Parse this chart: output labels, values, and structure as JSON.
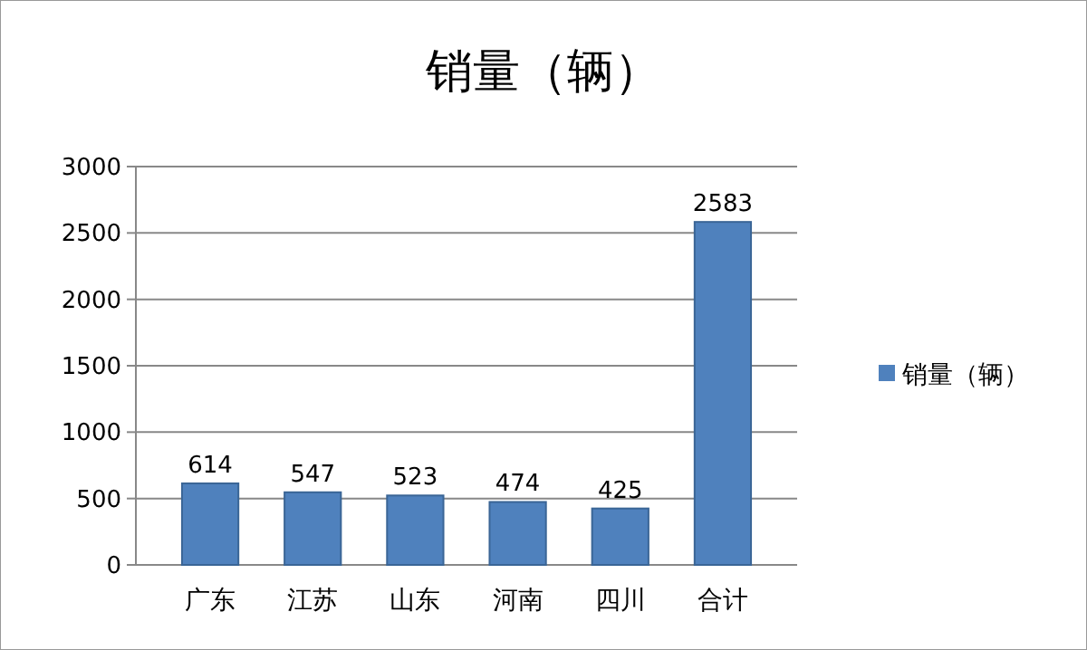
{
  "chart_data": {
    "type": "bar",
    "title": "销量（辆）",
    "categories": [
      "广东",
      "江苏",
      "山东",
      "河南",
      "四川",
      "合计"
    ],
    "series": [
      {
        "name": "销量（辆）",
        "color": "#4f81bd",
        "values": [
          614,
          547,
          523,
          474,
          425,
          2583
        ]
      }
    ],
    "ylim": [
      0,
      3000
    ],
    "yticks": [
      0,
      500,
      1000,
      1500,
      2000,
      2500,
      3000
    ],
    "grid": "y",
    "legend": "right",
    "data_labels": true
  }
}
